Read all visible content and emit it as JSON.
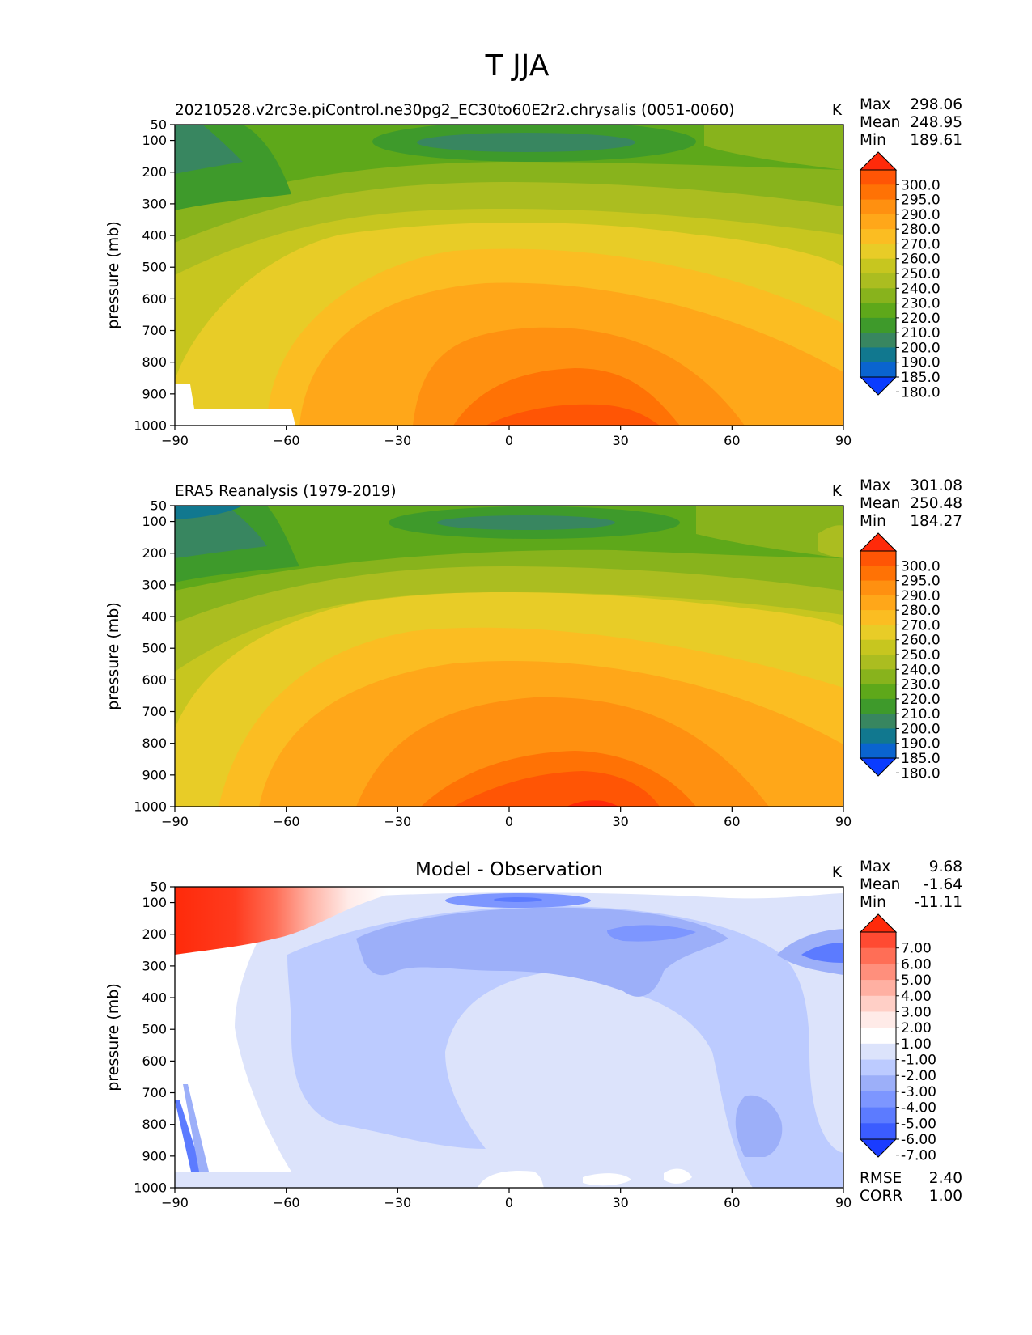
{
  "figure": {
    "title": "T JJA"
  },
  "chart_data": [
    {
      "type": "heatmap",
      "title": "20210528.v2rc3e.piControl.ne30pg2_EC30to60E2r2.chrysalis (0051-0060)",
      "units": "K",
      "xlabel": "",
      "ylabel": "pressure (mb)",
      "xlim": [
        -90,
        90
      ],
      "ylim": [
        1000,
        50
      ],
      "xticks": [
        "−90",
        "−60",
        "−30",
        "0",
        "30",
        "60",
        "90"
      ],
      "yticks": [
        "50",
        "100",
        "200",
        "300",
        "400",
        "500",
        "600",
        "700",
        "800",
        "900",
        "1000"
      ],
      "stats": [
        {
          "label": "Max",
          "value": "298.06"
        },
        {
          "label": "Mean",
          "value": "248.95"
        },
        {
          "label": "Min",
          "value": "189.61"
        }
      ],
      "colorbar": {
        "labels": [
          "300.0",
          "295.0",
          "290.0",
          "280.0",
          "270.0",
          "260.0",
          "250.0",
          "240.0",
          "230.0",
          "220.0",
          "210.0",
          "200.0",
          "190.0",
          "185.0",
          "180.0"
        ],
        "colors": [
          "#ff2a0a",
          "#ff5505",
          "#ff7205",
          "#ff9010",
          "#ffa719",
          "#fbbd22",
          "#e8cc27",
          "#c7c61f",
          "#abbd20",
          "#88b31c",
          "#5ea81a",
          "#3e9a2b",
          "#388660",
          "#11788f",
          "#0a64cf",
          "#0a3cff"
        ]
      }
    },
    {
      "type": "heatmap",
      "title": "ERA5 Reanalysis (1979-2019)",
      "units": "K",
      "xlabel": "",
      "ylabel": "pressure (mb)",
      "xlim": [
        -90,
        90
      ],
      "ylim": [
        1000,
        50
      ],
      "xticks": [
        "−90",
        "−60",
        "−30",
        "0",
        "30",
        "60",
        "90"
      ],
      "yticks": [
        "50",
        "100",
        "200",
        "300",
        "400",
        "500",
        "600",
        "700",
        "800",
        "900",
        "1000"
      ],
      "stats": [
        {
          "label": "Max",
          "value": "301.08"
        },
        {
          "label": "Mean",
          "value": "250.48"
        },
        {
          "label": "Min",
          "value": "184.27"
        }
      ],
      "colorbar": {
        "labels": [
          "300.0",
          "295.0",
          "290.0",
          "280.0",
          "270.0",
          "260.0",
          "250.0",
          "240.0",
          "230.0",
          "220.0",
          "210.0",
          "200.0",
          "190.0",
          "185.0",
          "180.0"
        ],
        "colors": [
          "#ff2a0a",
          "#ff5505",
          "#ff7205",
          "#ff9010",
          "#ffa719",
          "#fbbd22",
          "#e8cc27",
          "#c7c61f",
          "#abbd20",
          "#88b31c",
          "#5ea81a",
          "#3e9a2b",
          "#388660",
          "#11788f",
          "#0a64cf",
          "#0a3cff"
        ]
      }
    },
    {
      "type": "heatmap",
      "title": "Model - Observation",
      "units": "K",
      "xlabel": "",
      "ylabel": "pressure (mb)",
      "xlim": [
        -90,
        90
      ],
      "ylim": [
        1000,
        50
      ],
      "xticks": [
        "−90",
        "−60",
        "−30",
        "0",
        "30",
        "60",
        "90"
      ],
      "yticks": [
        "50",
        "100",
        "200",
        "300",
        "400",
        "500",
        "600",
        "700",
        "800",
        "900",
        "1000"
      ],
      "stats": [
        {
          "label": "Max",
          "value": "9.68"
        },
        {
          "label": "Mean",
          "value": "-1.64"
        },
        {
          "label": "Min",
          "value": "-11.11"
        }
      ],
      "metrics": [
        {
          "label": "RMSE",
          "value": "2.40"
        },
        {
          "label": "CORR",
          "value": "1.00"
        }
      ],
      "colorbar": {
        "labels": [
          "7.00",
          "6.00",
          "5.00",
          "4.00",
          "3.00",
          "2.00",
          "1.00",
          "-1.00",
          "-2.00",
          "-3.00",
          "-4.00",
          "-5.00",
          "-6.00",
          "-7.00"
        ],
        "colors": [
          "#ff2a0a",
          "#ff4a32",
          "#ff6e56",
          "#ff8f7c",
          "#ffb0a2",
          "#ffcfc6",
          "#ffebe8",
          "#ffffff",
          "#dce3fb",
          "#bccbff",
          "#9caff9",
          "#7d96ff",
          "#5c7bff",
          "#3b5cff",
          "#1a3cff"
        ]
      }
    }
  ]
}
